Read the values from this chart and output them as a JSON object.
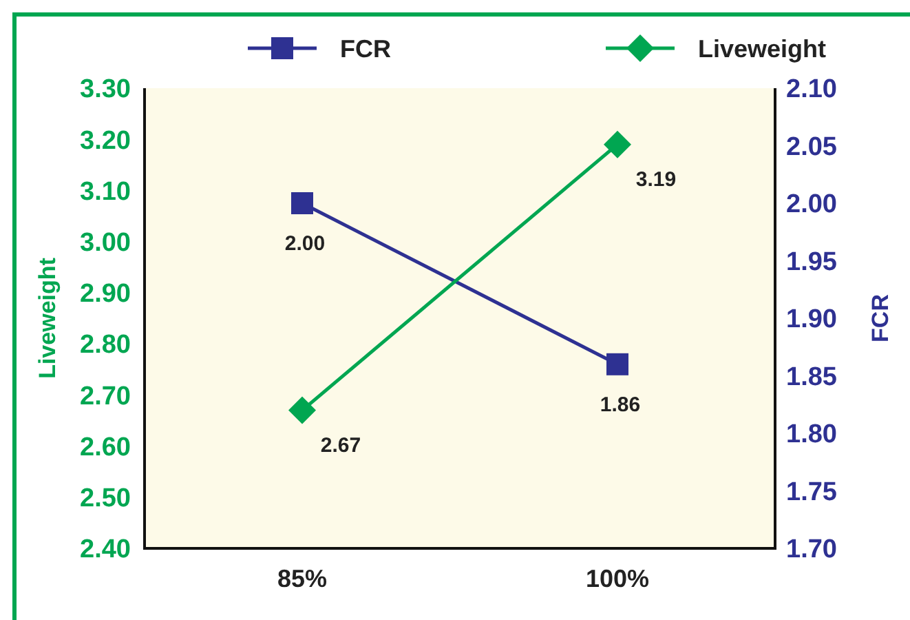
{
  "chart_data": {
    "type": "line",
    "xlabel": null,
    "ylabel": "Liveweight",
    "y2label": "FCR",
    "categories": [
      "85%",
      "100%"
    ],
    "series": [
      {
        "name": "FCR",
        "color": "#2e3192",
        "values": [
          2.0,
          1.86
        ],
        "axis": "y2",
        "marker": "square",
        "value_labels": [
          "2.00",
          "1.86"
        ]
      },
      {
        "name": "Liveweight",
        "color": "#00a651",
        "values": [
          2.67,
          3.19
        ],
        "marker": "diamond",
        "value_labels": [
          "2.67",
          "3.19"
        ]
      }
    ],
    "ylim": [
      2.4,
      3.3
    ],
    "yticks": [
      {
        "value": 2.4,
        "label": "2.40"
      },
      {
        "value": 2.5,
        "label": "2.50"
      },
      {
        "value": 2.6,
        "label": "2.60"
      },
      {
        "value": 2.7,
        "label": "2.70"
      },
      {
        "value": 2.8,
        "label": "2.80"
      },
      {
        "value": 2.9,
        "label": "2.90"
      },
      {
        "value": 3.0,
        "label": "3.00"
      },
      {
        "value": 3.1,
        "label": "3.10"
      },
      {
        "value": 3.2,
        "label": "3.20"
      },
      {
        "value": 3.3,
        "label": "3.30"
      }
    ],
    "y2lim": [
      1.7,
      2.1
    ],
    "y2ticks": [
      {
        "value": 1.7,
        "label": "1.70"
      },
      {
        "value": 1.75,
        "label": "1.75"
      },
      {
        "value": 1.8,
        "label": "1.80"
      },
      {
        "value": 1.85,
        "label": "1.85"
      },
      {
        "value": 1.9,
        "label": "1.90"
      },
      {
        "value": 1.95,
        "label": "1.95"
      },
      {
        "value": 2.0,
        "label": "2.00"
      },
      {
        "value": 2.05,
        "label": "2.05"
      },
      {
        "value": 2.1,
        "label": "2.10"
      }
    ],
    "legend": "top",
    "grid": false
  }
}
